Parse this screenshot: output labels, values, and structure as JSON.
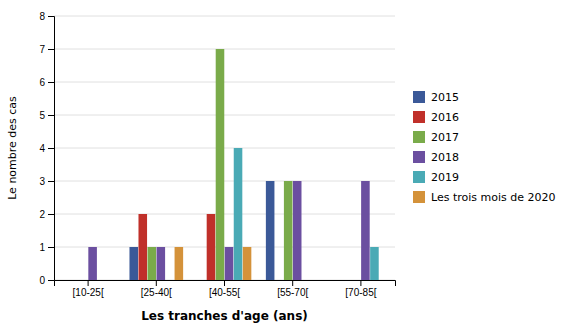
{
  "chart_data": {
    "type": "bar",
    "categories": [
      "[10-25[",
      "[25-40[",
      "[40-55[",
      "[55-70[",
      "[70-85["
    ],
    "series": [
      {
        "name": "2015",
        "color": "#3B5998",
        "values": [
          0,
          1,
          0,
          3,
          0
        ]
      },
      {
        "name": "2016",
        "color": "#C0302A",
        "values": [
          0,
          2,
          2,
          0,
          0
        ]
      },
      {
        "name": "2017",
        "color": "#7AAB4A",
        "values": [
          0,
          1,
          7,
          3,
          0
        ]
      },
      {
        "name": "2018",
        "color": "#6B4FA0",
        "values": [
          1,
          1,
          1,
          3,
          3
        ]
      },
      {
        "name": "2019",
        "color": "#4AAAB5",
        "values": [
          0,
          0,
          4,
          0,
          1
        ]
      },
      {
        "name": "Les trois mois de 2020",
        "color": "#D4923A",
        "values": [
          0,
          1,
          1,
          0,
          0
        ]
      }
    ],
    "xlabel": "Les tranches d'age (ans)",
    "ylabel": "Le nombre des cas",
    "ylim": [
      0,
      8
    ],
    "yticks": [
      0,
      1,
      2,
      3,
      4,
      5,
      6,
      7,
      8
    ],
    "grid": true,
    "legend": "right"
  }
}
